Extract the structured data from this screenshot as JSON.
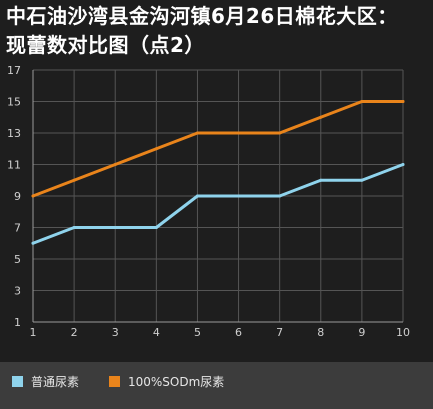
{
  "title_lines": [
    "中石油沙湾县金沟河镇6月26日棉花大区：",
    "现蕾数对比图（点2）"
  ],
  "colors": {
    "series_1": "#8fd3ec",
    "series_2": "#e9841b",
    "grid": "#555555",
    "axis_text": "#cfcfcf",
    "background": "#1e1e1e",
    "legend_bg": "#3c3c3c"
  },
  "chart_data": {
    "type": "line",
    "x": [
      1,
      2,
      3,
      4,
      5,
      6,
      7,
      8,
      9,
      10
    ],
    "ylim": [
      1,
      17
    ],
    "yticks": [
      1,
      3,
      5,
      7,
      9,
      11,
      13,
      15,
      17
    ],
    "xlabel": "",
    "ylabel": "",
    "grid": true,
    "legend": "bottom",
    "series": [
      {
        "name": "普通尿素",
        "values": [
          6,
          7,
          7,
          7,
          9,
          9,
          9,
          10,
          10,
          11
        ]
      },
      {
        "name": "100%SODm尿素",
        "values": [
          9,
          10,
          11,
          12,
          13,
          13,
          13,
          14,
          15,
          15
        ]
      }
    ]
  }
}
